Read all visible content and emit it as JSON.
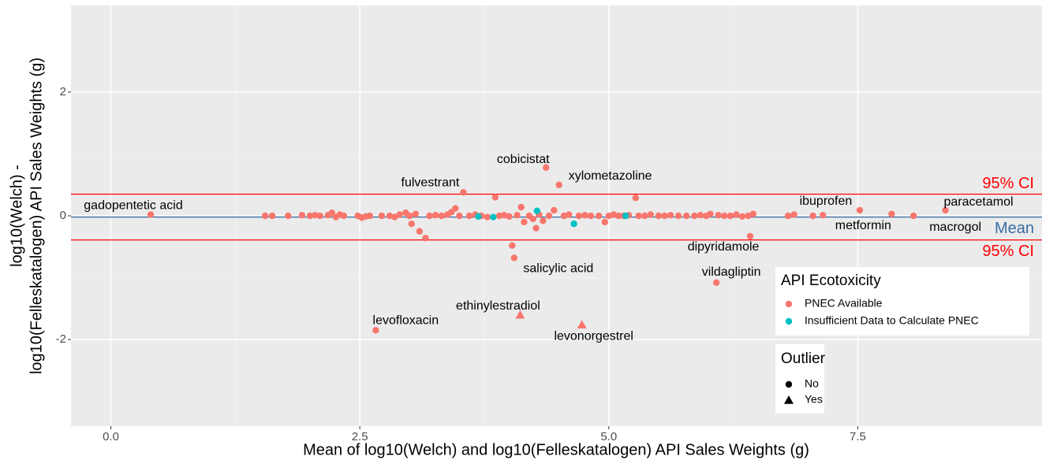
{
  "chart_data": {
    "type": "scatter",
    "x_label": "Mean of log10(Welch) and log10(Felleskatalogen) API Sales Weights (g)",
    "y_label": [
      "log10(Welch) -",
      "log10(Felleskatalogen) API Sales Weights (g)"
    ],
    "xlim": [
      -0.4,
      9.35
    ],
    "ylim": [
      -3.4,
      3.4
    ],
    "xticks": [
      {
        "value": 0,
        "label": "0.0"
      },
      2.5,
      {
        "value": 5,
        "label": "5.0"
      },
      7.5
    ],
    "yticks": [
      -2,
      0,
      2
    ],
    "grid": true,
    "reference_lines": [
      {
        "name": "Mean",
        "value": -0.02,
        "color": "#3a6ea5"
      },
      {
        "name": "95% CI",
        "value": 0.35,
        "color": "#ff0000"
      },
      {
        "name": "95% CI",
        "value": -0.39,
        "color": "#ff0000"
      }
    ],
    "legend_title": "API Ecotoxicity",
    "shape_legend": {
      "title": "Outlier",
      "items": [
        "No",
        "Yes"
      ]
    },
    "legend_position": "bottom-right",
    "series": [
      {
        "name": "PNEC Available",
        "color": "#f8766d",
        "x": [
          0.4,
          1.55,
          1.62,
          1.78,
          1.92,
          2.0,
          2.05,
          2.1,
          2.18,
          2.22,
          2.26,
          2.3,
          2.34,
          2.48,
          2.52,
          2.56,
          2.6,
          2.66,
          2.72,
          2.8,
          2.85,
          2.9,
          2.96,
          3.0,
          3.02,
          3.06,
          3.1,
          3.16,
          3.2,
          3.26,
          3.32,
          3.38,
          3.42,
          3.46,
          3.5,
          3.54,
          3.6,
          3.66,
          3.72,
          3.78,
          3.86,
          3.9,
          3.95,
          4.0,
          4.03,
          4.05,
          4.08,
          4.12,
          4.15,
          4.2,
          4.24,
          4.27,
          4.3,
          4.34,
          4.37,
          4.4,
          4.45,
          4.5,
          4.55,
          4.6,
          4.7,
          4.76,
          4.82,
          4.9,
          4.96,
          5.0,
          5.05,
          5.1,
          5.15,
          5.2,
          5.27,
          5.3,
          5.36,
          5.42,
          5.5,
          5.56,
          5.62,
          5.7,
          5.78,
          5.86,
          5.92,
          5.98,
          6.02,
          6.08,
          6.1,
          6.16,
          6.22,
          6.28,
          6.34,
          6.4,
          6.42,
          6.45,
          6.8,
          6.86,
          7.05,
          7.15,
          7.52,
          7.84,
          8.06,
          8.38,
          4.11,
          4.73
        ],
        "values": [
          0.02,
          0,
          0,
          0,
          0.01,
          0,
          0.01,
          0,
          0.01,
          0.05,
          -0.02,
          0.02,
          0,
          0,
          -0.03,
          -0.01,
          0,
          -1.85,
          0,
          0,
          -0.02,
          0.02,
          0.05,
          0,
          -0.13,
          0.03,
          -0.25,
          -0.36,
          0,
          0.01,
          0,
          0.02,
          0.06,
          0.12,
          0,
          0.38,
          0,
          0.02,
          0,
          -0.02,
          0.3,
          0,
          0.01,
          -0.01,
          -0.48,
          -0.68,
          0.01,
          0.14,
          -0.1,
          0,
          -0.05,
          -0.2,
          0.02,
          -0.08,
          0.78,
          0,
          0.09,
          0.5,
          0,
          0.02,
          0,
          0.01,
          0,
          0,
          -0.1,
          0,
          0.02,
          0,
          0,
          0.01,
          0.29,
          0,
          0,
          0.02,
          0,
          0,
          0.01,
          0,
          0,
          0,
          0.01,
          0,
          0.03,
          -1.08,
          0.01,
          0,
          0,
          0.02,
          -0.01,
          0,
          -0.33,
          0.03,
          0,
          0.02,
          0,
          0.01,
          0.09,
          0.03,
          0,
          0.09,
          -1.6,
          -1.76
        ],
        "outlier": [
          "No",
          "No",
          "No",
          "No",
          "No",
          "No",
          "No",
          "No",
          "No",
          "No",
          "No",
          "No",
          "No",
          "No",
          "No",
          "No",
          "No",
          "No",
          "No",
          "No",
          "No",
          "No",
          "No",
          "No",
          "No",
          "No",
          "No",
          "No",
          "No",
          "No",
          "No",
          "No",
          "No",
          "No",
          "No",
          "No",
          "No",
          "No",
          "No",
          "No",
          "No",
          "No",
          "No",
          "No",
          "No",
          "No",
          "No",
          "No",
          "No",
          "No",
          "No",
          "No",
          "No",
          "No",
          "No",
          "No",
          "No",
          "No",
          "No",
          "No",
          "No",
          "No",
          "No",
          "No",
          "No",
          "No",
          "No",
          "No",
          "No",
          "No",
          "No",
          "No",
          "No",
          "No",
          "No",
          "No",
          "No",
          "No",
          "No",
          "No",
          "No",
          "No",
          "No",
          "No",
          "No",
          "No",
          "No",
          "No",
          "No",
          "No",
          "No",
          "No",
          "No",
          "No",
          "No",
          "No",
          "No",
          "No",
          "No",
          "No",
          "Yes",
          "Yes"
        ],
        "labels": [
          "gadopentetic acid",
          null,
          null,
          null,
          null,
          null,
          null,
          null,
          null,
          null,
          null,
          null,
          null,
          null,
          null,
          null,
          null,
          "levofloxacin",
          null,
          null,
          null,
          null,
          null,
          null,
          null,
          null,
          null,
          null,
          null,
          null,
          null,
          null,
          null,
          null,
          null,
          "fulvestrant",
          null,
          null,
          null,
          null,
          null,
          null,
          null,
          null,
          null,
          "salicylic acid",
          null,
          null,
          null,
          null,
          null,
          null,
          null,
          null,
          "cobicistat",
          null,
          null,
          "xylometazoline",
          null,
          null,
          null,
          null,
          null,
          null,
          null,
          null,
          null,
          null,
          null,
          null,
          null,
          null,
          null,
          null,
          null,
          null,
          null,
          null,
          null,
          null,
          null,
          null,
          null,
          "vildagliptin",
          null,
          null,
          null,
          null,
          null,
          null,
          "dipyridamole",
          null,
          null,
          null,
          null,
          null,
          "ibuprofen",
          "metformin",
          "macrogol",
          "paracetamol",
          "ethinylestradiol",
          "levonorgestrel"
        ]
      },
      {
        "name": "Insufficient Data to Calculate PNEC",
        "color": "#00bfc4",
        "x": [
          3.69,
          3.84,
          4.28,
          4.65,
          5.17
        ],
        "values": [
          -0.01,
          -0.02,
          0.08,
          -0.13,
          0
        ],
        "outlier": [
          "No",
          "No",
          "No",
          "No",
          "No"
        ],
        "labels": [
          null,
          null,
          null,
          null,
          null
        ]
      }
    ]
  }
}
